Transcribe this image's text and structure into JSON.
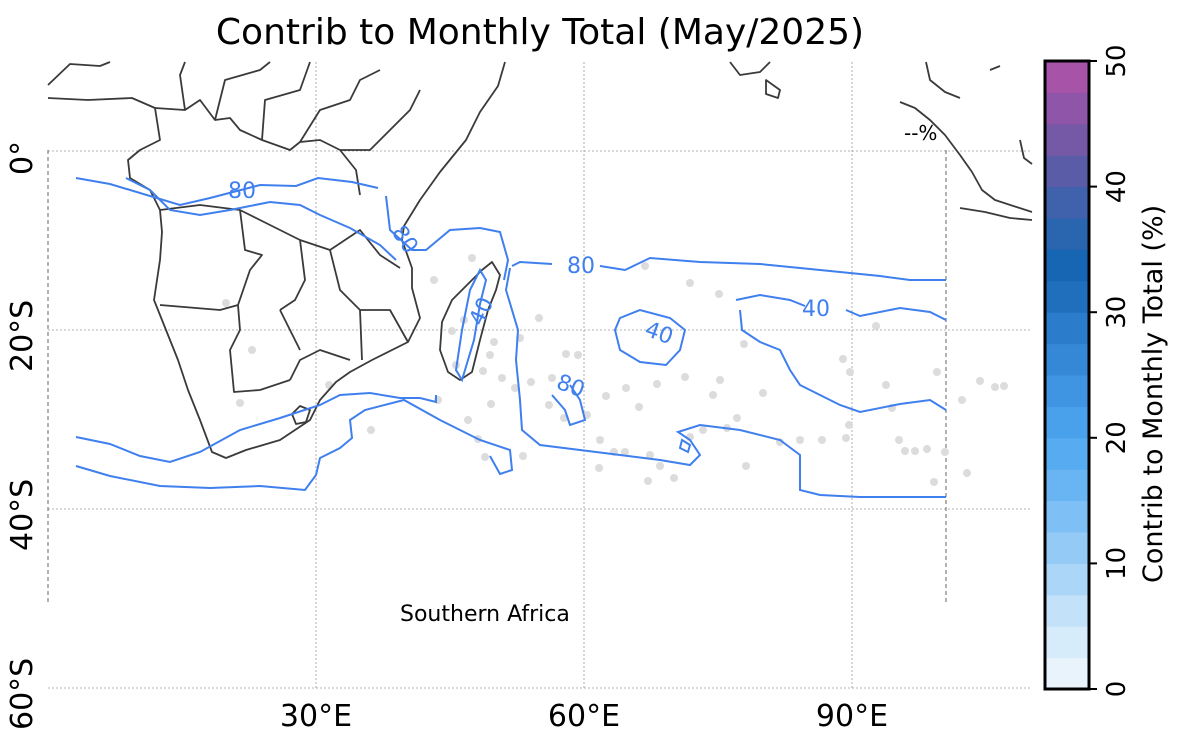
{
  "title": "Contrib to Monthly Total (May/2025)",
  "region_label": "Southern Africa",
  "percent_marker": "--%",
  "latitude_labels": [
    "0°",
    "20°S",
    "40°S",
    "60°S"
  ],
  "longitude_labels": [
    "30°E",
    "60°E",
    "90°E"
  ],
  "contour_labels": [
    "80",
    "80",
    "80",
    "80",
    "40",
    "40",
    "40",
    "80"
  ],
  "colorbar": {
    "label": "Contrib to Monthly Total (%)",
    "ticks": [
      "0",
      "10",
      "20",
      "30",
      "40",
      "50"
    ],
    "min": 0,
    "max": 50,
    "step": 2.5,
    "colors": [
      "#e8f3fc",
      "#d7ecfb",
      "#c3e2fa",
      "#abd6f8",
      "#94cbf6",
      "#7ec0f5",
      "#69b5f3",
      "#56abf1",
      "#49a1eb",
      "#3f95e2",
      "#3588d6",
      "#2b7cca",
      "#1f6fbc",
      "#1766b3",
      "#2a65b0",
      "#4061ac",
      "#5a5ca8",
      "#7558a6",
      "#8e55a8",
      "#a653a8"
    ]
  },
  "colors": {
    "contour": "#3f7fee",
    "coastline": "#3a3a3a",
    "gridline": "#9a9a9a",
    "dots": "#dcdcdc"
  }
}
